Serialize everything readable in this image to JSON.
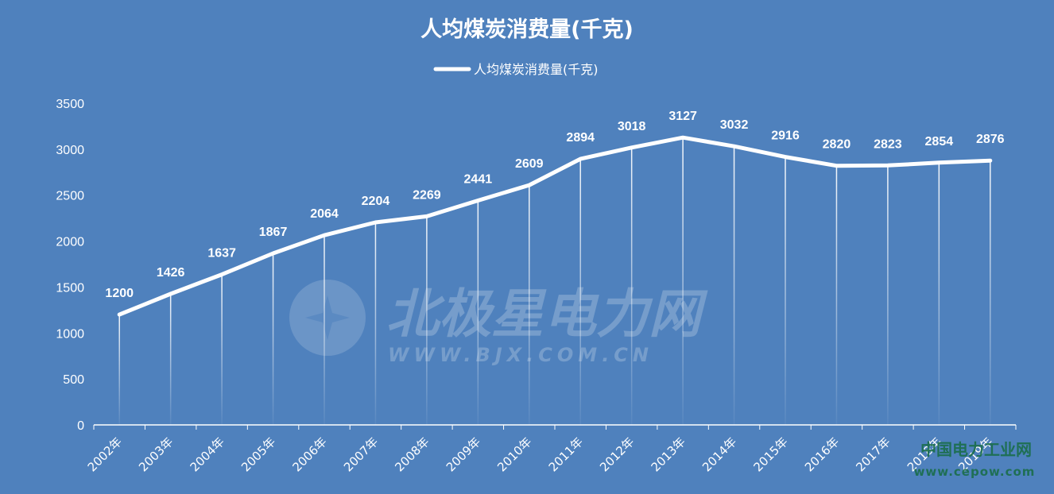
{
  "chart_data": {
    "type": "line",
    "title": "人均煤炭消费量(千克)",
    "categories": [
      "2002年",
      "2003年",
      "2004年",
      "2005年",
      "2006年",
      "2007年",
      "2008年",
      "2009年",
      "2010年",
      "2011年",
      "2012年",
      "2013年",
      "2014年",
      "2015年",
      "2016年",
      "2017年",
      "2018年",
      "2019年"
    ],
    "series": [
      {
        "name": "人均煤炭消费量(千克)",
        "values": [
          1200,
          1426,
          1637,
          1867,
          2064,
          2204,
          2269,
          2441,
          2609,
          2894,
          3018,
          3127,
          3032,
          2916,
          2820,
          2823,
          2854,
          2876
        ],
        "color": "#ffffff"
      }
    ],
    "yticks": [
      "0",
      "500",
      "1000",
      "1500",
      "2000",
      "2500",
      "3000",
      "3500"
    ],
    "ylim": [
      0,
      3500
    ],
    "legend_position": "top",
    "drop_lines": true,
    "grid": false
  },
  "watermarks": {
    "bjx_name": "北极星电力网",
    "bjx_url": "WWW.BJX.COM.CN",
    "cepow_name": "中国电力工业网",
    "cepow_url": "www.cepow.com"
  },
  "colors": {
    "background": "#4f81bd",
    "line": "#ffffff"
  }
}
